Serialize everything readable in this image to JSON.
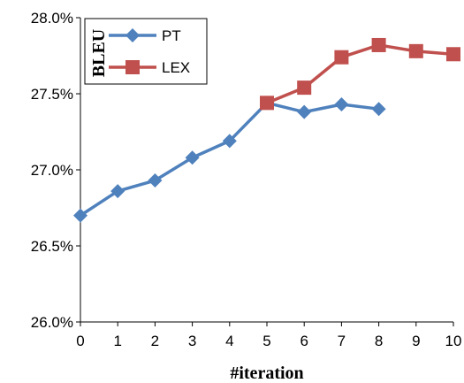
{
  "chart_data": {
    "type": "line",
    "xlabel": "#iteration",
    "ylabel": "BLEU",
    "xlim": [
      0,
      10
    ],
    "ylim": [
      26.0,
      28.0
    ],
    "x_ticks": [
      "0",
      "1",
      "2",
      "3",
      "4",
      "5",
      "6",
      "7",
      "8",
      "9",
      "10"
    ],
    "y_ticks": [
      "26.0%",
      "26.5%",
      "27.0%",
      "27.5%",
      "28.0%"
    ],
    "grid": false,
    "legend_position": "top-left",
    "series": [
      {
        "name": "PT",
        "color": "#4F81BD",
        "marker": "diamond",
        "x": [
          0,
          1,
          2,
          3,
          4,
          5,
          6,
          7,
          8
        ],
        "y": [
          26.7,
          26.86,
          26.93,
          27.08,
          27.19,
          27.44,
          27.38,
          27.43,
          27.4
        ]
      },
      {
        "name": "LEX",
        "color": "#C0504D",
        "marker": "square",
        "x": [
          5,
          6,
          7,
          8,
          9,
          10
        ],
        "y": [
          27.44,
          27.54,
          27.74,
          27.82,
          27.78,
          27.76
        ]
      }
    ]
  }
}
